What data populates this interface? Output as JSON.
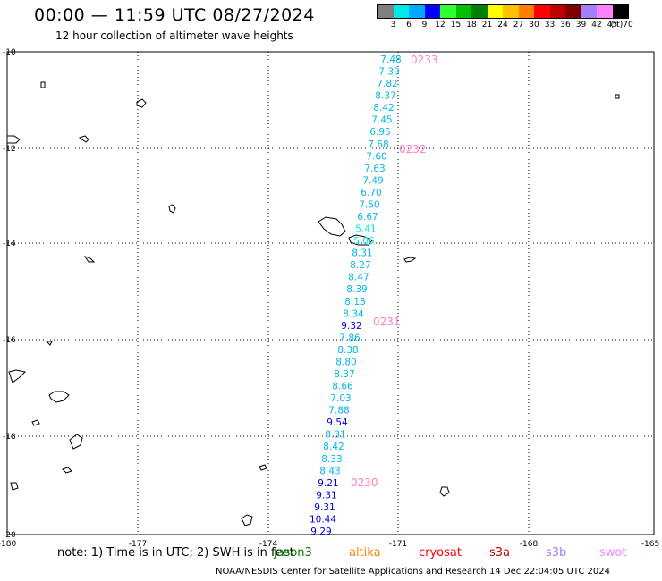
{
  "header": {
    "title": "00:00 — 11:59 UTC 08/27/2024",
    "subtitle": "12 hour collection of altimeter wave heights"
  },
  "legend": {
    "labels": [
      "3",
      "6",
      "9",
      "12",
      "15",
      "18",
      "21",
      "24",
      "27",
      "30",
      "33",
      "36",
      "39",
      "42",
      "45",
      "70"
    ],
    "unit": "(ft)",
    "colors": [
      "#808080",
      "#00e8e8",
      "#00a8ff",
      "#0000ff",
      "#30ff30",
      "#00c000",
      "#008000",
      "#ffff00",
      "#ffc000",
      "#ff8000",
      "#ff0000",
      "#c00000",
      "#800000",
      "#a080ff",
      "#ff80ff",
      "#000000"
    ]
  },
  "axes": {
    "x_labels": [
      "-180",
      "-177",
      "-174",
      "-171",
      "-168",
      "-165"
    ],
    "y_labels": [
      "-10",
      "-12",
      "-14",
      "-16",
      "-18",
      "-20"
    ]
  },
  "times": [
    "0233",
    "0232",
    "0231",
    "0230"
  ],
  "track": [
    {
      "v": "7.48",
      "c": "#00b8e8"
    },
    {
      "v": "7.39",
      "c": "#00b8e8"
    },
    {
      "v": "7.82",
      "c": "#00b8e8"
    },
    {
      "v": "8.37",
      "c": "#00b8e8"
    },
    {
      "v": "8.42",
      "c": "#00b8e8"
    },
    {
      "v": "7.45",
      "c": "#00b8e8"
    },
    {
      "v": "6.95",
      "c": "#00b8e8"
    },
    {
      "v": "7.68",
      "c": "#00b8e8"
    },
    {
      "v": "7.60",
      "c": "#00b8e8"
    },
    {
      "v": "7.63",
      "c": "#00b8e8"
    },
    {
      "v": "7.49",
      "c": "#00b8e8"
    },
    {
      "v": "6.70",
      "c": "#00b8e8"
    },
    {
      "v": "7.50",
      "c": "#00b8e8"
    },
    {
      "v": "6.67",
      "c": "#00b8e8"
    },
    {
      "v": "5.41",
      "c": "#00e8e8"
    },
    {
      "v": "5.06",
      "c": "#00e8e8"
    },
    {
      "v": "8.31",
      "c": "#00b8e8"
    },
    {
      "v": "8.27",
      "c": "#00b8e8"
    },
    {
      "v": "8.47",
      "c": "#00b8e8"
    },
    {
      "v": "8.39",
      "c": "#00b8e8"
    },
    {
      "v": "8.18",
      "c": "#00b8e8"
    },
    {
      "v": "8.34",
      "c": "#00b8e8"
    },
    {
      "v": "9.32",
      "c": "#0000e0"
    },
    {
      "v": "7.86",
      "c": "#00b8e8"
    },
    {
      "v": "8.38",
      "c": "#00b8e8"
    },
    {
      "v": "8.80",
      "c": "#00b8e8"
    },
    {
      "v": "8.37",
      "c": "#00b8e8"
    },
    {
      "v": "8.66",
      "c": "#00b8e8"
    },
    {
      "v": "7.03",
      "c": "#00b8e8"
    },
    {
      "v": "7.88",
      "c": "#00b8e8"
    },
    {
      "v": "9.54",
      "c": "#0000e0"
    },
    {
      "v": "8.31",
      "c": "#00b8e8"
    },
    {
      "v": "8.42",
      "c": "#00b8e8"
    },
    {
      "v": "8.33",
      "c": "#00b8e8"
    },
    {
      "v": "8.43",
      "c": "#00b8e8"
    },
    {
      "v": "9.21",
      "c": "#0000e0"
    },
    {
      "v": "9.31",
      "c": "#0000e0"
    },
    {
      "v": "9.31",
      "c": "#0000e0"
    },
    {
      "v": "10.44",
      "c": "#0000e0"
    },
    {
      "v": "9.29",
      "c": "#0000e0"
    }
  ],
  "footer": {
    "note": "note: 1) Time is in UTC; 2) SWH is in feet",
    "satellites": [
      {
        "name": "jason3",
        "color": "#008000"
      },
      {
        "name": "altika",
        "color": "#ff8000"
      },
      {
        "name": "cryosat",
        "color": "#ff0000"
      },
      {
        "name": "s3a",
        "color": "#c00000"
      },
      {
        "name": "s3b",
        "color": "#a080ff"
      },
      {
        "name": "swot",
        "color": "#ff80ff"
      }
    ],
    "credits": "NOAA/NESDIS Center for Satellite Applications and Research    14 Dec 22:04:05 UTC 2024"
  }
}
